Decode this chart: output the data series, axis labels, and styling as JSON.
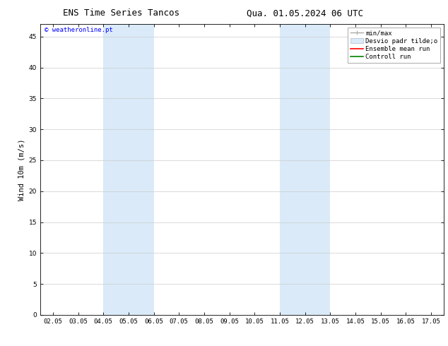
{
  "title_left": "ENS Time Series Tancos",
  "title_right": "Qua. 01.05.2024 06 UTC",
  "ylabel": "Wind 10m (m/s)",
  "watermark": "© weatheronline.pt",
  "xlim_start": 1.5,
  "xlim_end": 17.5,
  "ylim": [
    0,
    47
  ],
  "yticks": [
    0,
    5,
    10,
    15,
    20,
    25,
    30,
    35,
    40,
    45
  ],
  "xtick_labels": [
    "02.05",
    "03.05",
    "04.05",
    "05.05",
    "06.05",
    "07.05",
    "08.05",
    "09.05",
    "10.05",
    "11.05",
    "12.05",
    "13.05",
    "14.05",
    "15.05",
    "16.05",
    "17.05"
  ],
  "xtick_positions": [
    2,
    3,
    4,
    5,
    6,
    7,
    8,
    9,
    10,
    11,
    12,
    13,
    14,
    15,
    16,
    17
  ],
  "shaded_bands": [
    {
      "x_start": 4.0,
      "x_end": 6.0
    },
    {
      "x_start": 11.0,
      "x_end": 13.0
    }
  ],
  "shaded_color": "#daeaf8",
  "background_color": "#ffffff",
  "title_fontsize": 9,
  "tick_fontsize": 6.5,
  "ylabel_fontsize": 7.5,
  "legend_fontsize": 6.5,
  "watermark_fontsize": 6.5,
  "legend_label_minmax": "min/max",
  "legend_label_desvio": "Desvio padr tilde;o",
  "legend_label_ensemble": "Ensemble mean run",
  "legend_label_control": "Controll run",
  "legend_color_minmax": "#aaaaaa",
  "legend_color_desvio": "#daeaf8",
  "legend_color_ensemble": "red",
  "legend_color_control": "green"
}
